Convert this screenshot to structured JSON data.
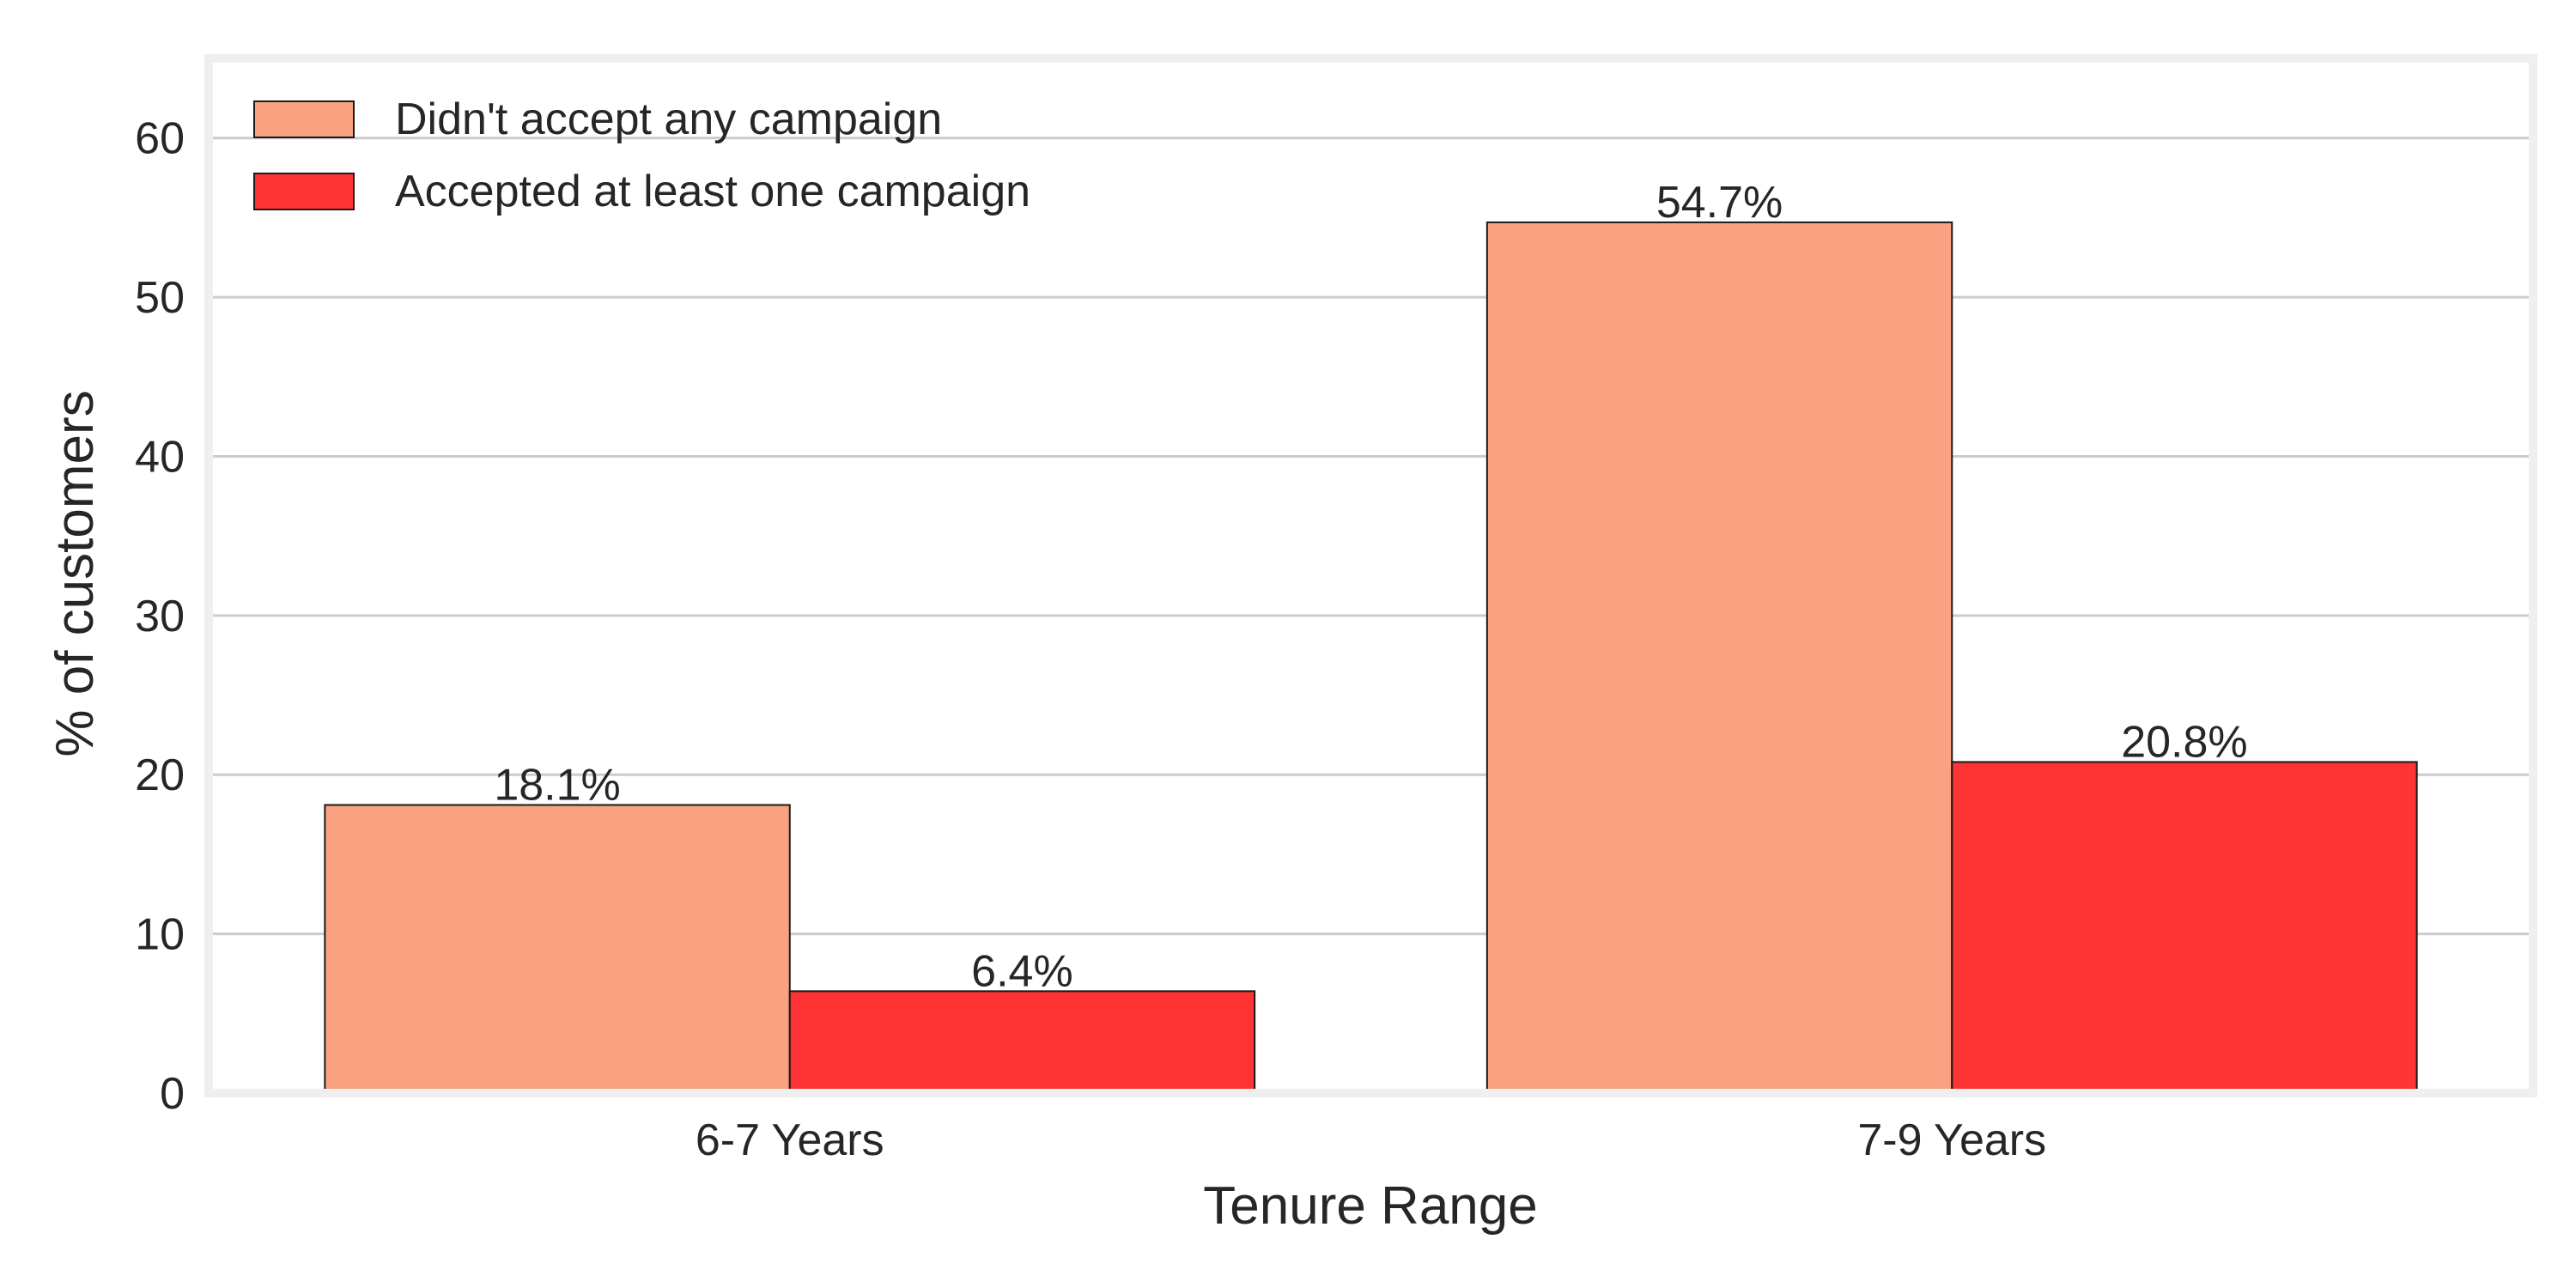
{
  "chart_data": {
    "type": "bar",
    "categories": [
      "6-7 Years",
      "7-9 Years"
    ],
    "series": [
      {
        "name": "Didn't accept any campaign",
        "values": [
          18.1,
          54.7
        ],
        "color": "#FAA181",
        "labels": [
          "18.1%",
          "54.7%"
        ]
      },
      {
        "name": "Accepted at least one campaign",
        "values": [
          6.4,
          20.8
        ],
        "color": "#FF3333",
        "labels": [
          "6.4%",
          "20.8%"
        ]
      }
    ],
    "title": "",
    "xlabel": "Tenure Range",
    "ylabel": "% of customers",
    "ylim": [
      0,
      65
    ],
    "yticks": [
      0,
      10,
      20,
      30,
      40,
      50,
      60
    ],
    "ytick_labels": [
      "0",
      "10",
      "20",
      "30",
      "40",
      "50",
      "60"
    ],
    "grid": "horizontal",
    "legend_position": "top-left",
    "colors": {
      "grid": "#CCCCCC",
      "frame": "#EFEFEF",
      "bar_edge": "#1A1A1A",
      "text": "#262626"
    }
  }
}
